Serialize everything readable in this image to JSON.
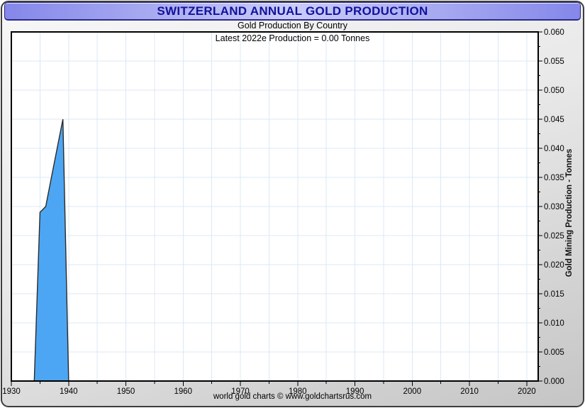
{
  "title_bar": {
    "title": "SWITZERLAND ANNUAL GOLD PRODUCTION"
  },
  "subtitles": {
    "line1": "Gold Production By Country",
    "line2": "Latest 2022e Production = 0.00 Tonnes"
  },
  "footer": {
    "credit": "world gold charts © www.goldchartsrus.com"
  },
  "colors": {
    "title_text": "#12129a",
    "title_bar_edge": "#8587ea",
    "title_bar_center": "#caccf8",
    "series_fill": "#4da6f3",
    "series_outline": "#2b2b2b",
    "gridline": "#dbe8f6",
    "axis": "#000000",
    "panel_light": "#f7f7f7",
    "panel_dark": "#c5c5c5",
    "plot_background": "#ffffff"
  },
  "chart_data": {
    "type": "area",
    "title": "SWITZERLAND ANNUAL GOLD PRODUCTION",
    "subtitle": "Gold Production By Country",
    "annotation": "Latest 2022e Production = 0.00 Tonnes",
    "series": [
      {
        "name": "Switzerland annual gold production",
        "x": [
          1934,
          1935,
          1936,
          1937,
          1938,
          1939,
          1940
        ],
        "values": [
          0.0,
          0.029,
          0.03,
          0.035,
          0.04,
          0.045,
          0.0
        ]
      }
    ],
    "xlabel": "",
    "ylabel": "Gold Mining Production - Tonnes",
    "xlim": [
      1930,
      2022
    ],
    "ylim": [
      0,
      0.06
    ],
    "x_major_ticks": [
      1930,
      1940,
      1950,
      1960,
      1970,
      1980,
      1990,
      2000,
      2010,
      2020
    ],
    "x_minor_step_years": 5,
    "y_major_tick_labels": [
      "0.000",
      "0.005",
      "0.010",
      "0.015",
      "0.020",
      "0.025",
      "0.030",
      "0.035",
      "0.040",
      "0.045",
      "0.050",
      "0.055",
      "0.060"
    ],
    "y_major_step": 0.005,
    "y_minor_step": 0.0025,
    "grid_x_step_years": 5,
    "grid_y_step": 0.005,
    "grid": true,
    "legend_position": "none",
    "latest_year": "2022e",
    "latest_value_tonnes": "0.00"
  }
}
